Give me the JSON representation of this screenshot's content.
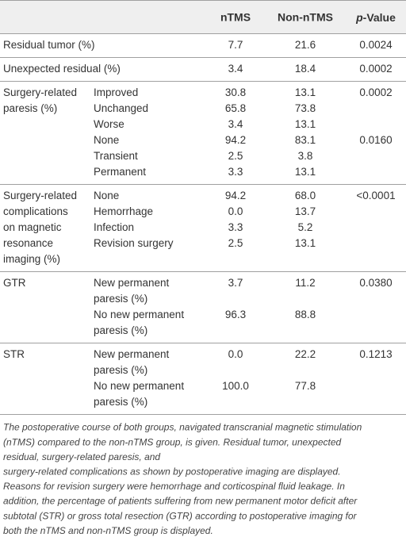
{
  "table": {
    "header": {
      "ntms": "nTMS",
      "non_ntms": "Non-nTMS",
      "p_value": {
        "italic": "p",
        "text": "-Value"
      }
    },
    "groups": [
      {
        "label": [
          "Residual tumor (%)"
        ],
        "rows": [
          {
            "ntms": "7.7",
            "non_ntms": "21.6",
            "p": "0.0024"
          }
        ]
      },
      {
        "label": [
          "Unexpected residual (%)"
        ],
        "rows": [
          {
            "ntms": "3.4",
            "non_ntms": "18.4",
            "p": "0.0002"
          }
        ]
      },
      {
        "label": [
          "Surgery-related",
          "paresis (%)"
        ],
        "rows": [
          {
            "sub": [
              "Improved"
            ],
            "ntms": "30.8",
            "non_ntms": "13.1",
            "p": "0.0002"
          },
          {
            "sub": [
              "Unchanged"
            ],
            "ntms": "65.8",
            "non_ntms": "73.8"
          },
          {
            "sub": [
              "Worse"
            ],
            "ntms": "3.4",
            "non_ntms": "13.1"
          },
          {
            "sub": [
              "None"
            ],
            "ntms": "94.2",
            "non_ntms": "83.1",
            "p": "0.0160"
          },
          {
            "sub": [
              "Transient"
            ],
            "ntms": "2.5",
            "non_ntms": "3.8"
          },
          {
            "sub": [
              "Permanent"
            ],
            "ntms": "3.3",
            "non_ntms": "13.1"
          }
        ]
      },
      {
        "label": [
          "Surgery-related",
          "complications",
          "on magnetic",
          "resonance",
          "imaging (%)"
        ],
        "rows": [
          {
            "sub": [
              "None"
            ],
            "ntms": "94.2",
            "non_ntms": "68.0",
            "p": "<0.0001"
          },
          {
            "sub": [
              "Hemorrhage"
            ],
            "ntms": "0.0",
            "non_ntms": "13.7"
          },
          {
            "sub": [
              "Infection"
            ],
            "ntms": "3.3",
            "non_ntms": "5.2"
          },
          {
            "sub": [
              "Revision surgery"
            ],
            "ntms": "2.5",
            "non_ntms": "13.1"
          }
        ]
      },
      {
        "label": [
          "GTR"
        ],
        "rows": [
          {
            "sub": [
              "New permanent",
              "paresis (%)"
            ],
            "ntms": "3.7",
            "non_ntms": "11.2",
            "p": "0.0380"
          },
          {
            "sub": [
              "No new permanent",
              "paresis (%)"
            ],
            "ntms": "96.3",
            "non_ntms": "88.8"
          }
        ]
      },
      {
        "label": [
          "STR"
        ],
        "rows": [
          {
            "sub": [
              "New permanent",
              "paresis (%)"
            ],
            "ntms": "0.0",
            "non_ntms": "22.2",
            "p": "0.1213"
          },
          {
            "sub": [
              "No new permanent",
              "paresis (%)"
            ],
            "ntms": "100.0",
            "non_ntms": "77.8"
          }
        ]
      }
    ]
  },
  "footnote": [
    "The postoperative course of both groups, navigated transcranial magnetic stimulation",
    "(nTMS) compared to the non-nTMS group, is given. Residual tumor, unexpected",
    "residual, surgery-related paresis, and",
    "surgery-related complications as shown by postoperative imaging are displayed.",
    "Reasons for revision surgery were hemorrhage and corticospinal fluid leakage. In",
    "addition, the percentage of patients suffering from new permanent motor deficit after",
    "subtotal (STR) or gross total resection (GTR) according to postoperative imaging for",
    "both the nTMS and non-nTMS group is displayed."
  ]
}
